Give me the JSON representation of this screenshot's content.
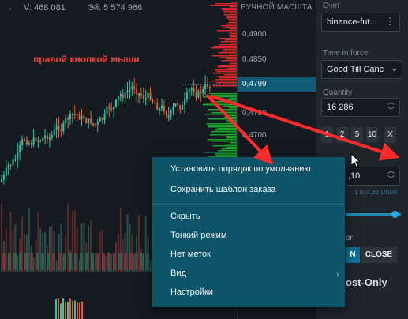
{
  "stats": {
    "volume_label": "V:",
    "volume": "468 081",
    "ev_label": "Эй:",
    "ev": "5 574 966"
  },
  "price_scale": {
    "title": "РУЧНОЙ МАСШТА",
    "current": "0,4799",
    "ticks": [
      "0,4900",
      "0,4850",
      "0,4750",
      "0,4700"
    ]
  },
  "annotation": "правой кнопкой мыши",
  "panel": {
    "account_label": "Счет",
    "account_value": "binance-fut...",
    "tif_label": "Time in force",
    "tif_value": "Good Till Canc",
    "quantity_label": "Quantity",
    "quantity_value": "16 286",
    "quick_qty": [
      "1",
      "2",
      "5",
      "10",
      "X"
    ],
    "price_value": ",10",
    "price_hint": "1 024,32 USDT",
    "open_label": "N",
    "close_label": "CLOSE",
    "post_only_label": "ost-Only",
    "or_label": "or"
  },
  "context_menu": {
    "items": [
      "Установить порядок по умолчанию",
      "Сохранить шаблон заказа",
      "Скрыть",
      "Тонкий режим",
      "Нет меток",
      "Вид",
      "Настройки"
    ]
  },
  "colors": {
    "up": "#2ec4a6",
    "down": "#e0602e",
    "context_bg": "#0d5469",
    "arrow": "#ff2a2a",
    "bid": "#1aa32a",
    "ask": "#d42828"
  }
}
